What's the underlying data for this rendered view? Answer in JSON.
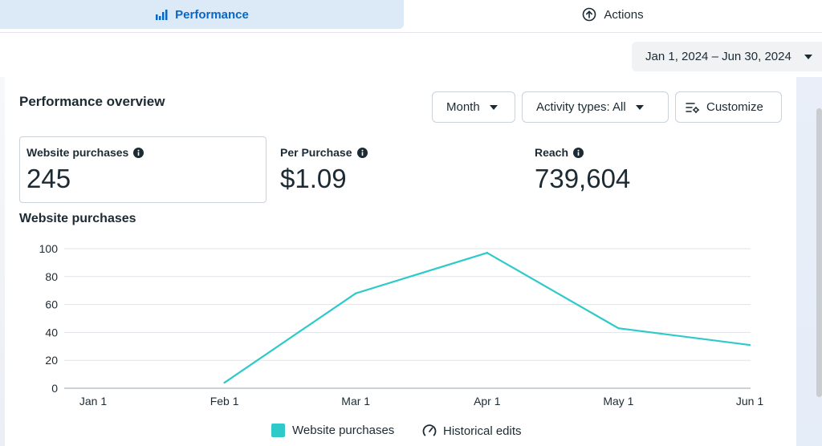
{
  "tabs": [
    {
      "label": "Performance",
      "icon": "bar-chart-icon",
      "active": true
    },
    {
      "label": "Actions",
      "icon": "arrow-up-circle-icon",
      "active": false
    }
  ],
  "date_range": {
    "label": "Jan 1, 2024 – Jun 30, 2024"
  },
  "overview": {
    "title": "Performance overview",
    "controls": {
      "month": "Month",
      "activity": "Activity types: All",
      "customize": "Customize"
    },
    "metrics": [
      {
        "label": "Website purchases",
        "value": "245"
      },
      {
        "label": "Per Purchase",
        "value": "$1.09"
      },
      {
        "label": "Reach",
        "value": "739,604"
      }
    ]
  },
  "chart_data": {
    "type": "line",
    "title": "Website purchases",
    "x": [
      "Jan 1",
      "Feb 1",
      "Mar 1",
      "Apr 1",
      "May 1",
      "Jun 1"
    ],
    "series": [
      {
        "name": "Website purchases",
        "color": "#2ec9c9",
        "values": [
          null,
          4,
          68,
          97,
          43,
          31
        ]
      }
    ],
    "yticks": [
      0,
      20,
      40,
      60,
      80,
      100
    ],
    "ylim": [
      0,
      100
    ],
    "grid": true
  },
  "legend": {
    "series_label": "Website purchases",
    "historical_label": "Historical edits"
  },
  "colors": {
    "accent": "#0a66c2",
    "active_tab_bg": "#dceaf8",
    "line": "#2ec9c9"
  }
}
